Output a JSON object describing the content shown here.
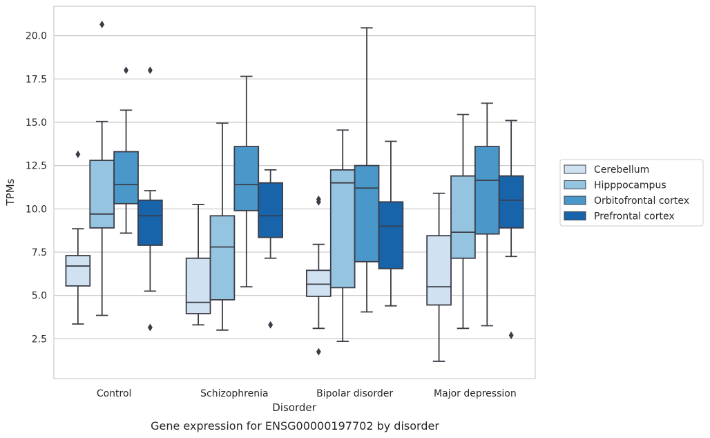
{
  "chart_data": {
    "type": "boxplot",
    "title": "Gene expression for ENSG00000197702 by disorder",
    "xlabel": "Disorder",
    "ylabel": "TPMs",
    "ylim": [
      0.2,
      21.7
    ],
    "yticks": [
      2.5,
      5.0,
      7.5,
      10.0,
      12.5,
      15.0,
      17.5,
      20.0
    ],
    "ytick_labels": [
      "2.5",
      "5.0",
      "7.5",
      "10.0",
      "12.5",
      "15.0",
      "17.5",
      "20.0"
    ],
    "grid": "horizontal",
    "legend_position": "right",
    "categories": [
      "Control",
      "Schizophrenia",
      "Bipolar disorder",
      "Major depression"
    ],
    "series": [
      {
        "name": "Cerebellum",
        "color": "#d0e1f2",
        "boxes": [
          {
            "whisker_low": 3.35,
            "q1": 5.55,
            "median": 6.7,
            "q3": 7.3,
            "whisker_high": 8.85,
            "outliers": [
              13.15
            ]
          },
          {
            "whisker_low": 3.3,
            "q1": 3.95,
            "median": 4.6,
            "q3": 7.15,
            "whisker_high": 10.25,
            "outliers": []
          },
          {
            "whisker_low": 3.1,
            "q1": 4.95,
            "median": 5.65,
            "q3": 6.45,
            "whisker_high": 7.95,
            "outliers": [
              10.4,
              10.55,
              1.75
            ]
          },
          {
            "whisker_low": 1.2,
            "q1": 4.45,
            "median": 5.5,
            "q3": 8.45,
            "whisker_high": 10.9,
            "outliers": []
          }
        ]
      },
      {
        "name": "Hipppocampus",
        "color": "#94c4df",
        "boxes": [
          {
            "whisker_low": 3.85,
            "q1": 8.9,
            "median": 9.7,
            "q3": 12.8,
            "whisker_high": 15.05,
            "outliers": [
              20.65
            ]
          },
          {
            "whisker_low": 3.0,
            "q1": 4.75,
            "median": 7.8,
            "q3": 9.6,
            "whisker_high": 14.95,
            "outliers": []
          },
          {
            "whisker_low": 2.35,
            "q1": 5.45,
            "median": 11.5,
            "q3": 12.25,
            "whisker_high": 14.55,
            "outliers": []
          },
          {
            "whisker_low": 3.1,
            "q1": 7.15,
            "median": 8.65,
            "q3": 11.9,
            "whisker_high": 15.45,
            "outliers": []
          }
        ]
      },
      {
        "name": "Orbitofrontal cortex",
        "color": "#4a98c9",
        "boxes": [
          {
            "whisker_low": 8.6,
            "q1": 10.3,
            "median": 11.4,
            "q3": 13.3,
            "whisker_high": 15.7,
            "outliers": [
              18.0
            ]
          },
          {
            "whisker_low": 5.5,
            "q1": 9.9,
            "median": 11.4,
            "q3": 13.6,
            "whisker_high": 17.65,
            "outliers": []
          },
          {
            "whisker_low": 4.05,
            "q1": 6.95,
            "median": 11.2,
            "q3": 12.5,
            "whisker_high": 20.45,
            "outliers": []
          },
          {
            "whisker_low": 3.25,
            "q1": 8.55,
            "median": 11.65,
            "q3": 13.6,
            "whisker_high": 16.1,
            "outliers": []
          }
        ]
      },
      {
        "name": "Prefrontal cortex",
        "color": "#1764ab",
        "boxes": [
          {
            "whisker_low": 5.25,
            "q1": 7.9,
            "median": 9.6,
            "q3": 10.5,
            "whisker_high": 11.05,
            "outliers": [
              18.0,
              3.15
            ]
          },
          {
            "whisker_low": 7.15,
            "q1": 8.35,
            "median": 9.6,
            "q3": 11.5,
            "whisker_high": 12.25,
            "outliers": [
              3.3
            ]
          },
          {
            "whisker_low": 4.4,
            "q1": 6.55,
            "median": 9.0,
            "q3": 10.4,
            "whisker_high": 13.9,
            "outliers": []
          },
          {
            "whisker_low": 7.25,
            "q1": 8.9,
            "median": 10.5,
            "q3": 11.9,
            "whisker_high": 15.1,
            "outliers": [
              2.7
            ]
          }
        ]
      }
    ]
  },
  "style": {
    "box_edge_color": "#3c3c46",
    "grid_color": "#cccccc",
    "axes_edge_color": "#cccccc"
  }
}
